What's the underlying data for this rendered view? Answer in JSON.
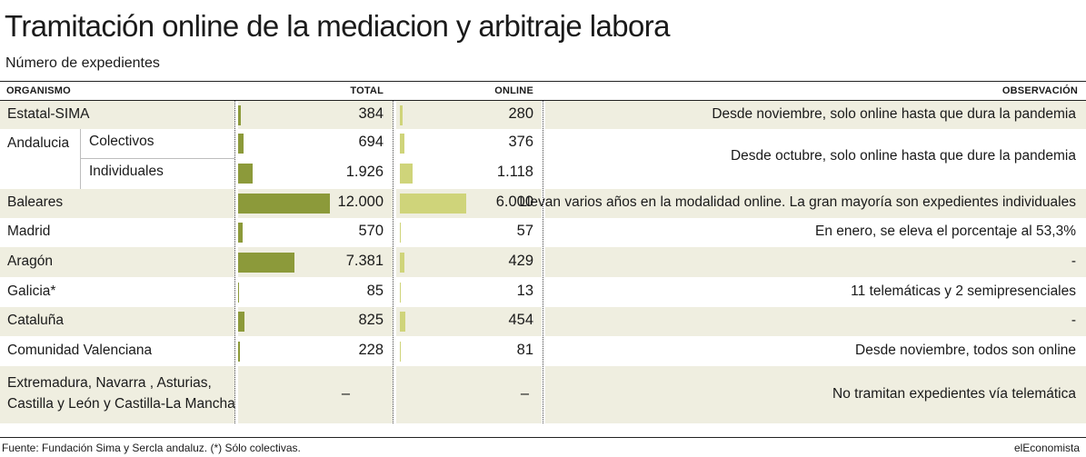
{
  "title": "Tramitación online de la mediacion y arbitraje labora",
  "subtitle": "Número de expedientes",
  "headers": {
    "organismo": "ORGANISMO",
    "total": "TOTAL",
    "online": "ONLINE",
    "observacion": "OBSERVACIÓN"
  },
  "colors": {
    "total_bar": "#8c9a3a",
    "online_bar": "#cfd47a",
    "row_band": "#efeee0"
  },
  "chart_data": {
    "type": "table",
    "columns": [
      "ORGANISMO",
      "TOTAL",
      "ONLINE",
      "OBSERVACIÓN"
    ],
    "bar_scale_max": 12000,
    "rows": [
      {
        "organismo": "Estatal-SIMA",
        "sub": "",
        "total": 384,
        "total_label": "384",
        "online": 280,
        "online_label": "280",
        "observacion": "Desde noviembre, solo online hasta que dura la pandemia"
      },
      {
        "organismo": "Andalucia",
        "sub": "Colectivos",
        "total": 694,
        "total_label": "694",
        "online": 376,
        "online_label": "376",
        "observacion": "Desde octubre, solo online hasta que dure la pandemia"
      },
      {
        "organismo": "",
        "sub": "Individuales",
        "total": 1926,
        "total_label": "1.926",
        "online": 1118,
        "online_label": "1.118",
        "observacion": ""
      },
      {
        "organismo": "Baleares",
        "sub": "",
        "total": 12000,
        "total_label": "12.000",
        "online": 6000,
        "online_label": "6.000",
        "observacion": "Llevan varios años en la modalidad online. La gran mayoría son expedientes individuales"
      },
      {
        "organismo": "Madrid",
        "sub": "",
        "total": 570,
        "total_label": "570",
        "online": 57,
        "online_label": "57",
        "observacion": "En enero, se eleva el porcentaje al 53,3%"
      },
      {
        "organismo": "Aragón",
        "sub": "",
        "total": 7381,
        "total_label": "7.381",
        "online": 429,
        "online_label": "429",
        "observacion": "-"
      },
      {
        "organismo": "Galicia*",
        "sub": "",
        "total": 85,
        "total_label": "85",
        "online": 13,
        "online_label": "13",
        "observacion": "11 telemáticas y 2 semipresenciales"
      },
      {
        "organismo": "Cataluña",
        "sub": "",
        "total": 825,
        "total_label": "825",
        "online": 454,
        "online_label": "454",
        "observacion": "-"
      },
      {
        "organismo": "Comunidad Valenciana",
        "sub": "",
        "total": 228,
        "total_label": "228",
        "online": 81,
        "online_label": "81",
        "observacion": "Desde noviembre, todos son online"
      },
      {
        "organismo": "Extremadura, Navarra , Asturias, Castilla y León y Castilla-La Mancha",
        "organismo_line1": "Extremadura, Navarra , Asturias,",
        "organismo_line2": "Castilla y León y Castilla-La Mancha",
        "sub": "",
        "total": null,
        "total_label": "–",
        "online": null,
        "online_label": "–",
        "observacion": "No tramitan expedientes vía telemática"
      }
    ]
  },
  "footer": {
    "source": "Fuente: Fundación Sima y Sercla andaluz.  (*) Sólo colectivas.",
    "brand": "elEconomista"
  }
}
